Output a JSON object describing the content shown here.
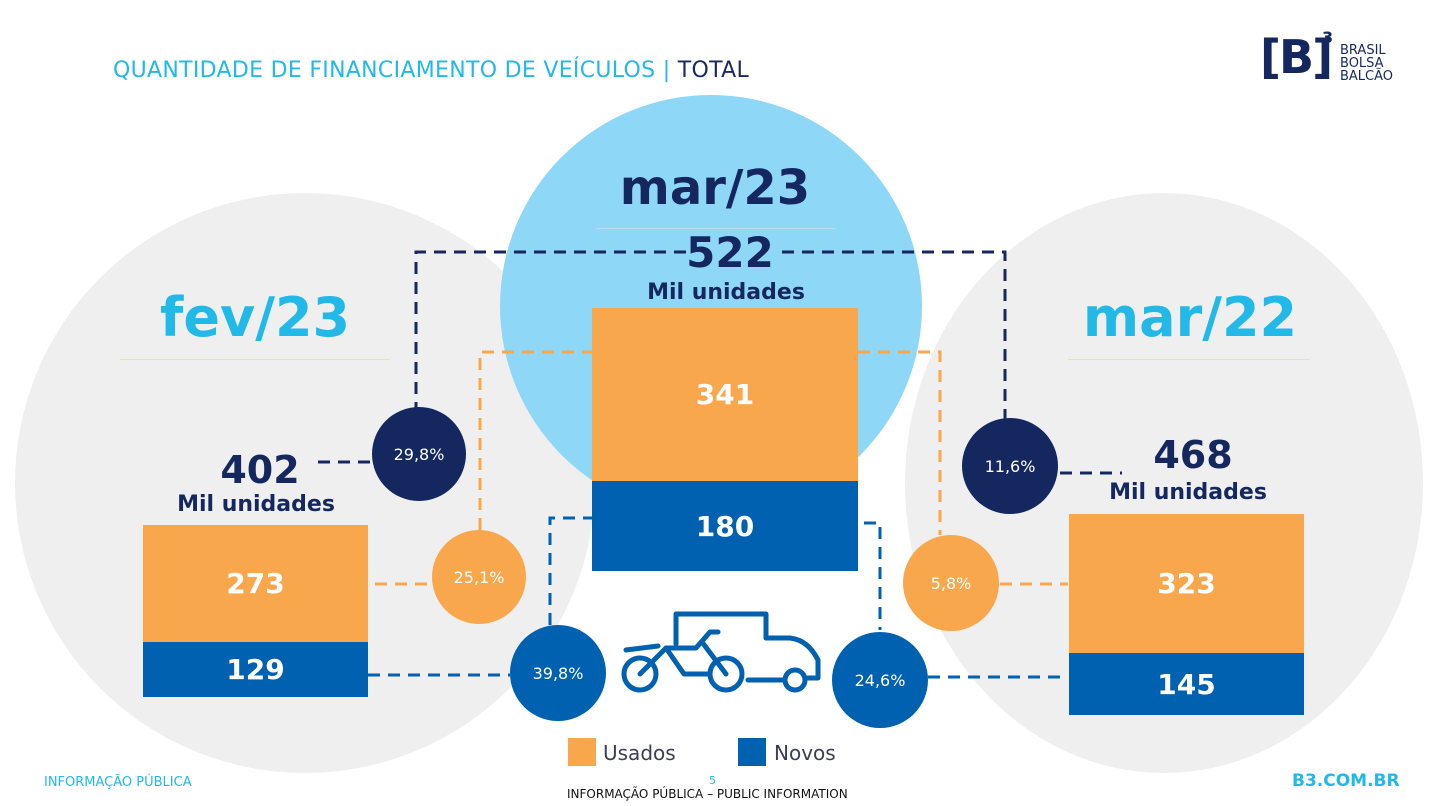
{
  "header": {
    "title_main": "QUANTIDADE DE FINANCIAMENTO DE VEÍCULOS",
    "title_sep": "|",
    "title_sub": "TOTAL"
  },
  "logo": {
    "mark": "[B]",
    "sup": "3",
    "lines": [
      "BRASIL",
      "BOLSA",
      "BALCÃO"
    ]
  },
  "periods": {
    "left": {
      "label": "fev/23",
      "total": "402",
      "unit": "Mil unidades",
      "usados": "273",
      "novos": "129"
    },
    "center": {
      "label": "mar/23",
      "total": "522",
      "unit": "Mil unidades",
      "usados": "341",
      "novos": "180"
    },
    "right": {
      "label": "mar/22",
      "total": "468",
      "unit": "Mil unidades",
      "usados": "323",
      "novos": "145"
    }
  },
  "variations": {
    "total_left": "29,8%",
    "usados_left": "25,1%",
    "novos_left": "39,8%",
    "total_right": "11,6%",
    "usados_right": "5,8%",
    "novos_right": "24,6%"
  },
  "legend": {
    "usados": "Usados",
    "novos": "Novos"
  },
  "footer": {
    "left": "INFORMAÇÃO PÚBLICA",
    "page": "5",
    "center": "INFORMAÇÃO PÚBLICA – PUBLIC INFORMATION",
    "right": "B3.COM.BR"
  },
  "colors": {
    "usados": "#f8a74d",
    "novos": "#0061b0",
    "dark": "#14285f",
    "light_blue": "#8fd7f7",
    "gray_circle": "#f0f0f0",
    "cyan": "#22b8e8"
  },
  "icons": [
    "vehicles-icon"
  ]
}
